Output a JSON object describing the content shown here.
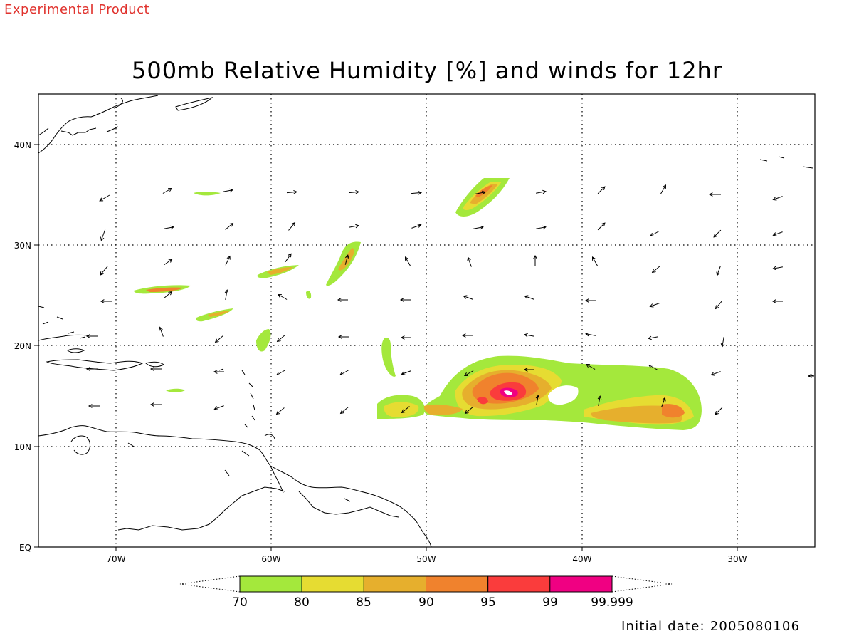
{
  "header": {
    "experimental_label": "Experimental Product",
    "title": "500mb Relative Humidity [%] and winds for 12hr",
    "initial_date": "Initial date: 2005080106"
  },
  "map": {
    "lon_range": [
      -75,
      -25
    ],
    "lat_range": [
      0,
      45
    ],
    "grid": true,
    "lat_tick_labels": [
      "40N",
      "30N",
      "20N",
      "10N",
      "EQ"
    ],
    "lon_tick_labels": [
      "70W",
      "60W",
      "50W",
      "40W",
      "30W"
    ],
    "wind_arrow_icon": "arrow-icon"
  },
  "colorbar": {
    "labels": [
      "70",
      "80",
      "85",
      "90",
      "95",
      "99",
      "99.999"
    ],
    "colors": [
      "#a4e83c",
      "#e6dc32",
      "#e6af2d",
      "#f0822d",
      "#fa3c3c",
      "#f00082"
    ]
  },
  "colors": {
    "experimental_label": "#e0322d",
    "coastline": "#000000",
    "grid": "#000000"
  }
}
